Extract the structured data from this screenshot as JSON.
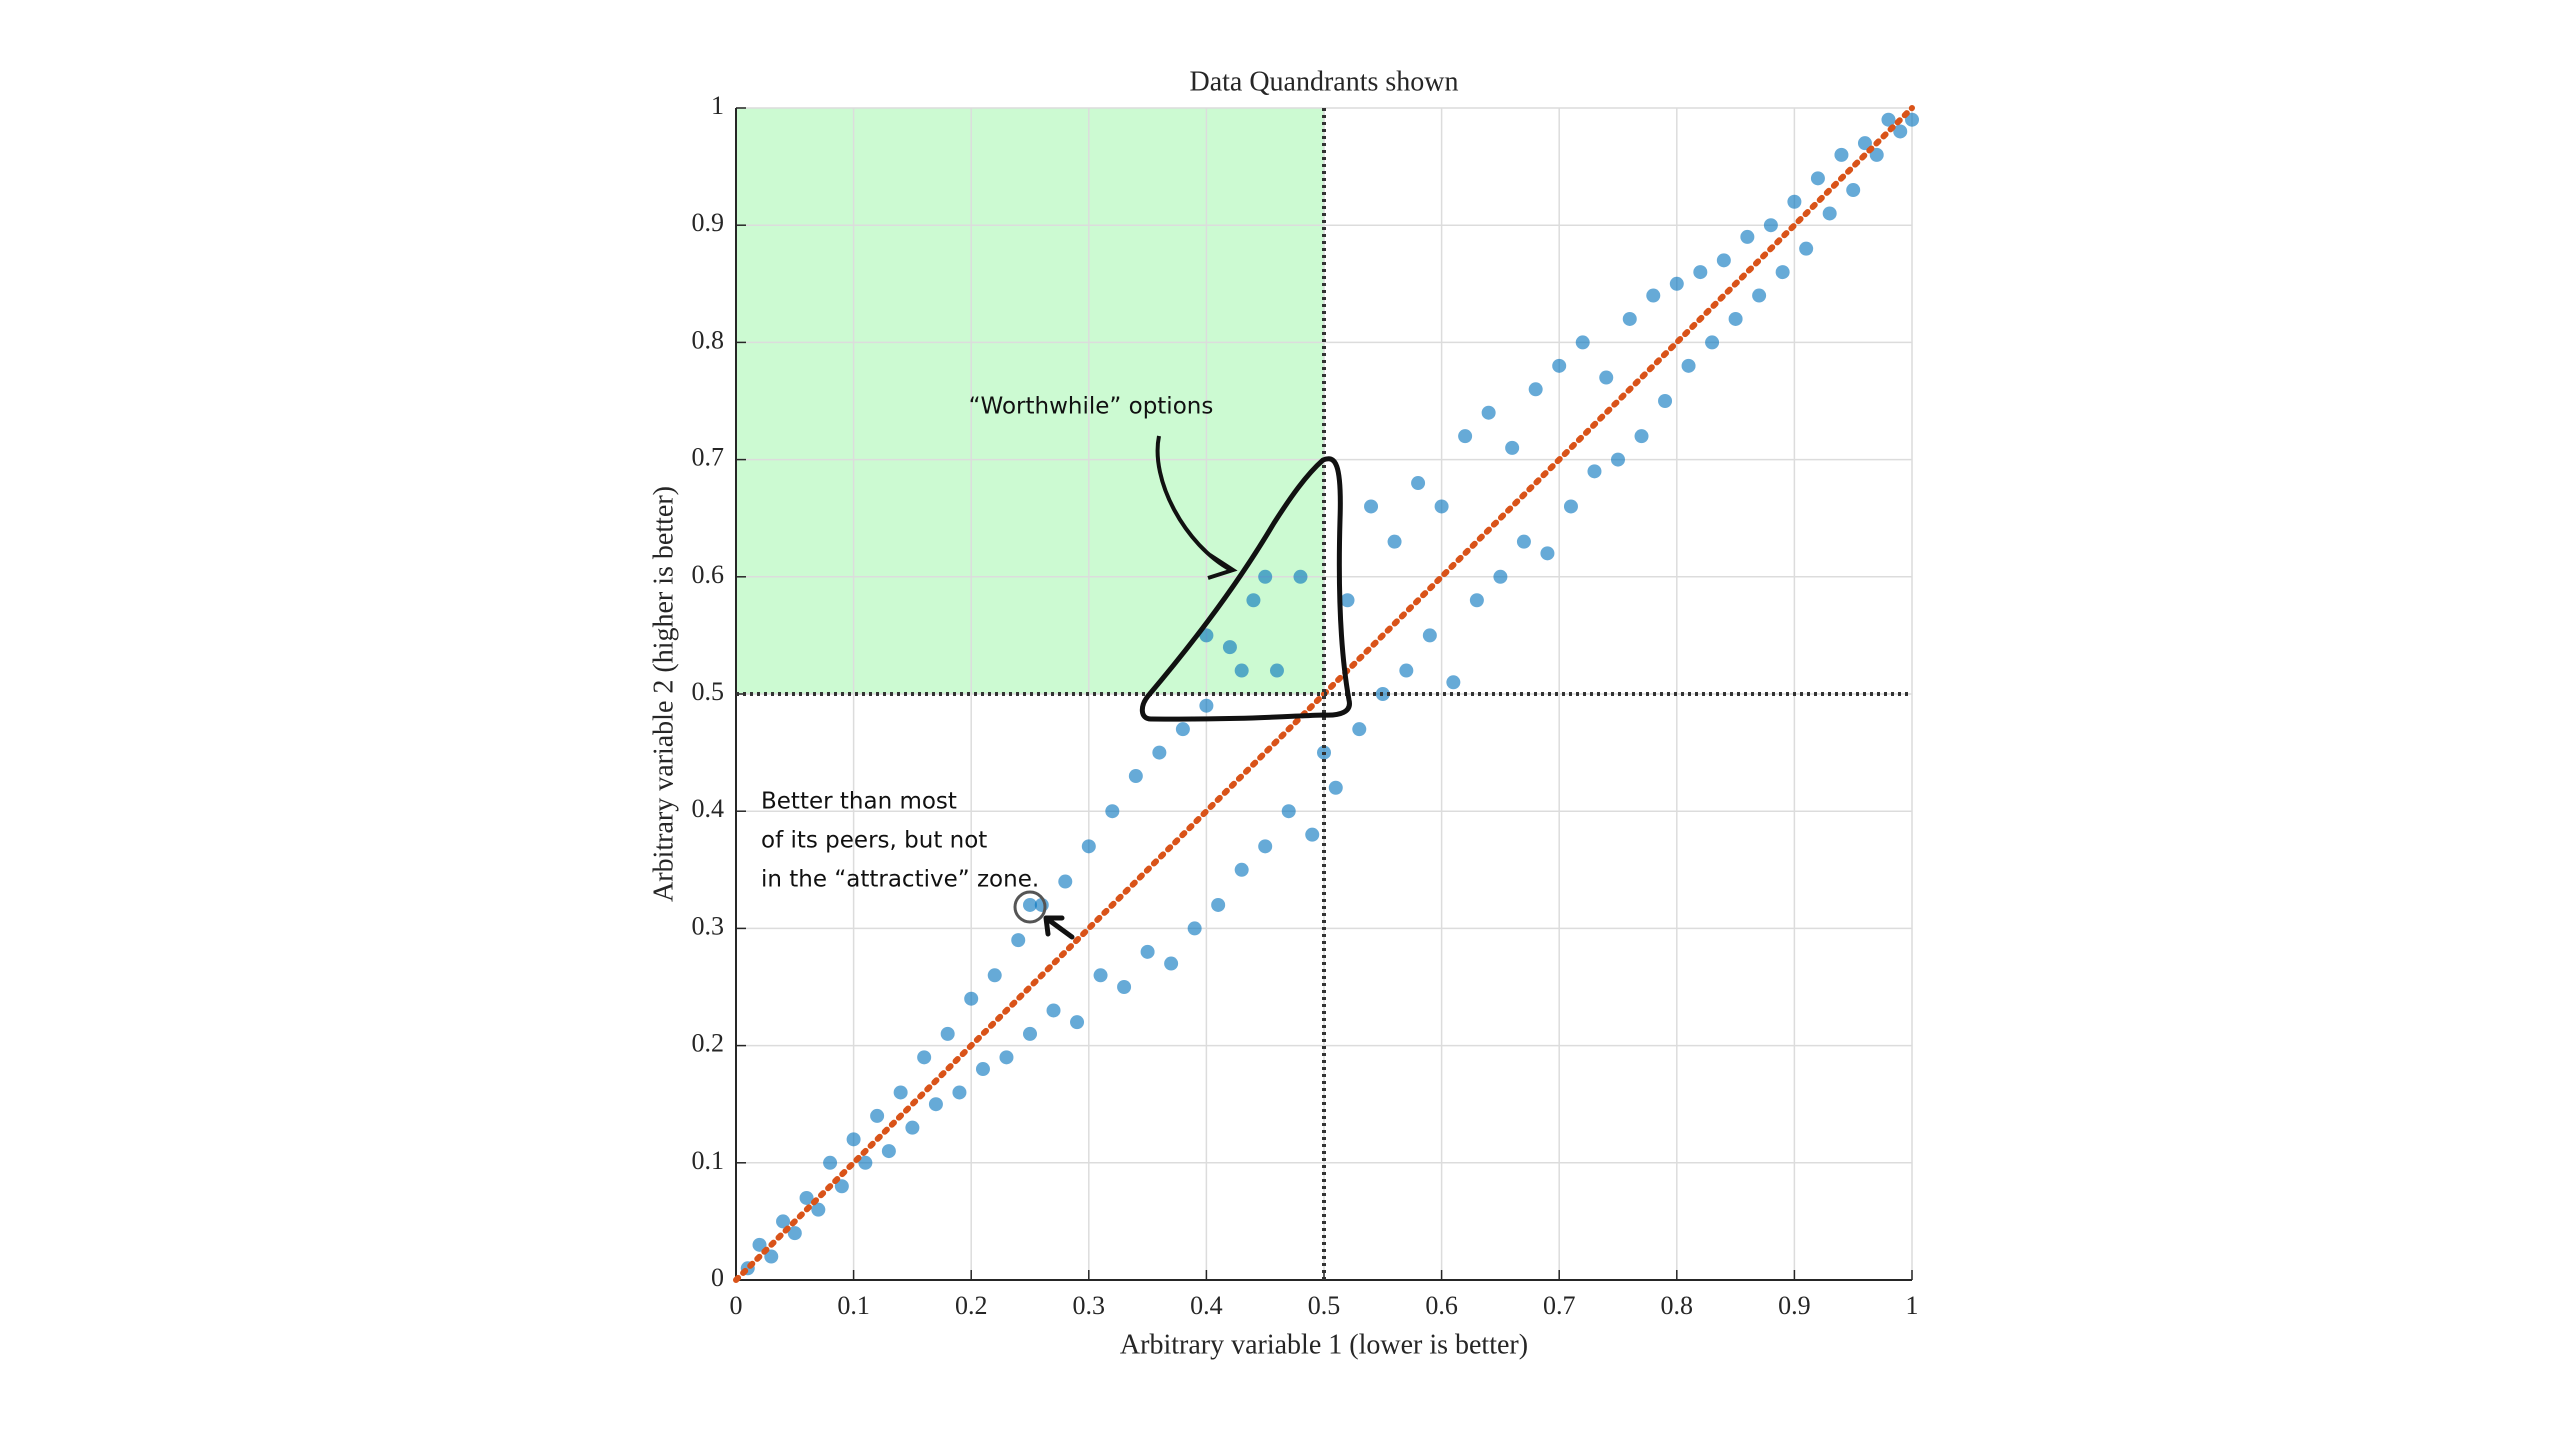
{
  "chart_data": {
    "type": "scatter",
    "title": "Data Quandrants shown",
    "x_label": "Arbitrary variable 1 (lower is better)",
    "y_label": "Arbitrary variable 2 (higher is better)",
    "xlim": [
      0,
      1
    ],
    "ylim": [
      0,
      1
    ],
    "xticks": [
      0,
      0.1,
      0.2,
      0.3,
      0.4,
      0.5,
      0.6,
      0.7,
      0.8,
      0.9,
      1
    ],
    "yticks": [
      0,
      0.1,
      0.2,
      0.3,
      0.4,
      0.5,
      0.6,
      0.7,
      0.8,
      0.9,
      1
    ],
    "grid": true,
    "highlight": {
      "xlim": [
        0,
        0.5
      ],
      "ylim": [
        0.5,
        1
      ],
      "color": "#ccfad2"
    },
    "quadrant_lines": {
      "x": 0.5,
      "y": 0.5,
      "color": "#333333"
    },
    "reference_line": {
      "x": [
        0,
        1
      ],
      "y": [
        0,
        1
      ],
      "color": "#d95319"
    },
    "annotations": [
      "“Worthwhile” options",
      "Better than most",
      "of its peers, but not",
      "in the “attractive” zone."
    ],
    "series": [
      {
        "color": "#0072bd",
        "x": [
          0.01,
          0.02,
          0.03,
          0.04,
          0.05,
          0.06,
          0.07,
          0.08,
          0.09,
          0.1,
          0.11,
          0.12,
          0.13,
          0.14,
          0.15,
          0.16,
          0.17,
          0.18,
          0.19,
          0.2,
          0.21,
          0.22,
          0.23,
          0.24,
          0.25,
          0.26,
          0.27,
          0.28,
          0.29,
          0.3,
          0.31,
          0.32,
          0.33,
          0.34,
          0.35,
          0.36,
          0.37,
          0.38,
          0.39,
          0.4,
          0.41,
          0.42,
          0.43,
          0.44,
          0.45,
          0.46,
          0.47,
          0.48,
          0.49,
          0.5,
          0.51,
          0.52,
          0.53,
          0.54,
          0.55,
          0.56,
          0.57,
          0.58,
          0.59,
          0.6,
          0.61,
          0.62,
          0.63,
          0.64,
          0.65,
          0.66,
          0.67,
          0.68,
          0.69,
          0.7,
          0.71,
          0.72,
          0.73,
          0.74,
          0.75,
          0.76,
          0.77,
          0.78,
          0.79,
          0.8,
          0.81,
          0.82,
          0.83,
          0.84,
          0.85,
          0.86,
          0.87,
          0.88,
          0.89,
          0.9,
          0.91,
          0.92,
          0.93,
          0.94,
          0.95,
          0.96,
          0.97,
          0.98,
          0.99,
          1.0,
          0.25,
          0.4,
          0.45,
          0.43
        ],
        "y": [
          0.01,
          0.03,
          0.02,
          0.05,
          0.04,
          0.07,
          0.06,
          0.1,
          0.08,
          0.12,
          0.1,
          0.14,
          0.11,
          0.16,
          0.13,
          0.19,
          0.15,
          0.21,
          0.16,
          0.24,
          0.18,
          0.26,
          0.19,
          0.29,
          0.21,
          0.32,
          0.23,
          0.34,
          0.22,
          0.37,
          0.26,
          0.4,
          0.25,
          0.43,
          0.28,
          0.45,
          0.27,
          0.47,
          0.3,
          0.49,
          0.32,
          0.54,
          0.35,
          0.58,
          0.37,
          0.52,
          0.4,
          0.6,
          0.38,
          0.45,
          0.42,
          0.58,
          0.47,
          0.66,
          0.5,
          0.63,
          0.52,
          0.68,
          0.55,
          0.66,
          0.51,
          0.72,
          0.58,
          0.74,
          0.6,
          0.71,
          0.63,
          0.76,
          0.62,
          0.78,
          0.66,
          0.8,
          0.69,
          0.77,
          0.7,
          0.82,
          0.72,
          0.84,
          0.75,
          0.85,
          0.78,
          0.86,
          0.8,
          0.87,
          0.82,
          0.89,
          0.84,
          0.9,
          0.86,
          0.92,
          0.88,
          0.94,
          0.91,
          0.96,
          0.93,
          0.97,
          0.96,
          0.99,
          0.98,
          0.99,
          0.32,
          0.55,
          0.6,
          0.52
        ]
      }
    ]
  }
}
